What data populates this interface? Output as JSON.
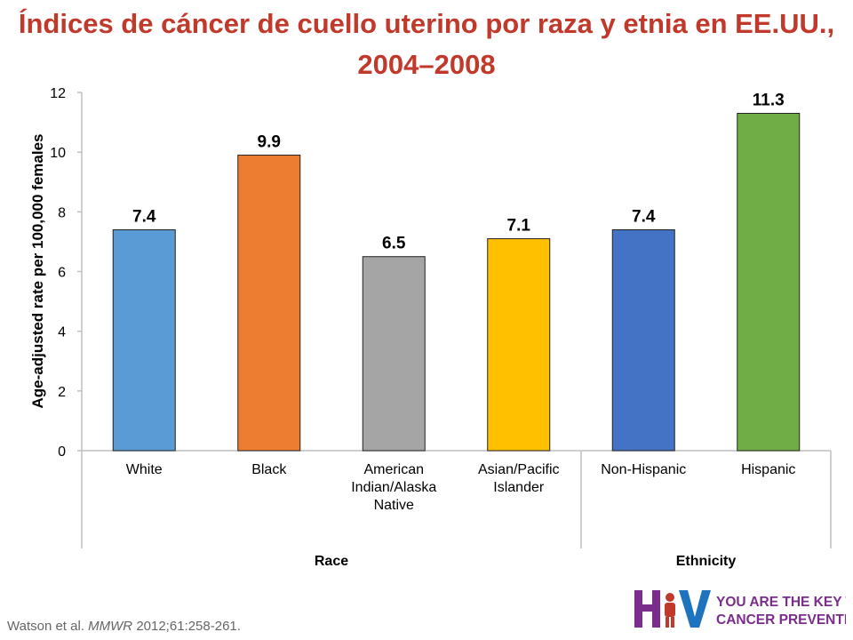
{
  "title": "Índices de cáncer de cuello uterino por raza y etnia en EE.UU., 2004–2008",
  "citation": {
    "authors": "Watson et al.",
    "journal": "MMWR",
    "ref": "2012;61:258-261."
  },
  "logo": {
    "mark": "HPV",
    "line1": "YOU ARE THE KEY TO",
    "line2": "CANCER PREVENTION"
  },
  "chart_data": {
    "type": "bar",
    "title": "",
    "ylabel": "Age-adjusted rate per 100,000 females",
    "ylim": [
      0,
      12
    ],
    "yticks": [
      0,
      2,
      4,
      6,
      8,
      10,
      12
    ],
    "grid": false,
    "legend": "none",
    "categories": [
      {
        "label": [
          "White"
        ],
        "value": 7.4,
        "value_label": "7.4",
        "color": "#5b9bd5",
        "group": "Race"
      },
      {
        "label": [
          "Black"
        ],
        "value": 9.9,
        "value_label": "9.9",
        "color": "#ed7d31",
        "group": "Race"
      },
      {
        "label": [
          "American",
          "Indian/Alaska",
          "Native"
        ],
        "value": 6.5,
        "value_label": "6.5",
        "color": "#a5a5a5",
        "group": "Race"
      },
      {
        "label": [
          "Asian/Pacific",
          "Islander"
        ],
        "value": 7.1,
        "value_label": "7.1",
        "color": "#ffc000",
        "group": "Race"
      },
      {
        "label": [
          "Non-Hispanic"
        ],
        "value": 7.4,
        "value_label": "7.4",
        "color": "#4472c4",
        "group": "Ethnicity"
      },
      {
        "label": [
          "Hispanic"
        ],
        "value": 11.3,
        "value_label": "11.3",
        "color": "#70ad47",
        "group": "Ethnicity"
      }
    ],
    "groups": [
      "Race",
      "Ethnicity"
    ]
  },
  "colors": {
    "title": "#c0392b",
    "axis": "#bfbfbf",
    "text": "#000000",
    "logo_purple": "#7b2d8b",
    "logo_blue": "#1e73be"
  }
}
